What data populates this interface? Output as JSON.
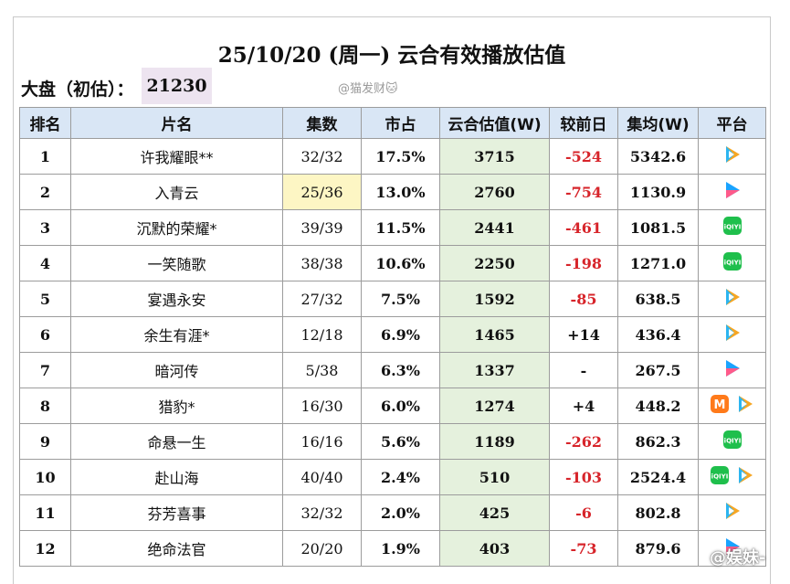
{
  "title": "25/10/20 (周一) 云合有效播放估值",
  "summary": {
    "label": "大盘（初估）：",
    "value": "21230"
  },
  "watermark": "@猫发财🐱",
  "weibo_mark": "@娱妹-",
  "columns": [
    "排名",
    "片名",
    "集数",
    "市占",
    "云合估值(W)",
    "较前日",
    "集均(W)",
    "平台"
  ],
  "colors": {
    "header_bg": "#d9e6f5",
    "estimate_bg": "#e5f1dd",
    "negative": "#d7242a",
    "summary_bg": "#ede4f0",
    "highlight_eps": "#fdf6c4"
  },
  "rows": [
    {
      "rank": "1",
      "name": "许我耀眼**",
      "episodes": "32/32",
      "share": "17.5%",
      "estimate": "3715",
      "change": "-524",
      "avg": "5342.6",
      "platforms": [
        "tencent-video-icon"
      ]
    },
    {
      "rank": "2",
      "name": "入青云",
      "episodes": "25/36",
      "share": "13.0%",
      "estimate": "2760",
      "change": "-754",
      "avg": "1130.9",
      "platforms": [
        "youku-icon"
      ]
    },
    {
      "rank": "3",
      "name": "沉默的荣耀*",
      "episodes": "39/39",
      "share": "11.5%",
      "estimate": "2441",
      "change": "-461",
      "avg": "1081.5",
      "platforms": [
        "iqiyi-icon"
      ]
    },
    {
      "rank": "4",
      "name": "一笑随歌",
      "episodes": "38/38",
      "share": "10.6%",
      "estimate": "2250",
      "change": "-198",
      "avg": "1271.0",
      "platforms": [
        "iqiyi-icon"
      ]
    },
    {
      "rank": "5",
      "name": "宴遇永安",
      "episodes": "27/32",
      "share": "7.5%",
      "estimate": "1592",
      "change": "-85",
      "avg": "638.5",
      "platforms": [
        "tencent-video-icon"
      ]
    },
    {
      "rank": "6",
      "name": "余生有涯*",
      "episodes": "12/18",
      "share": "6.9%",
      "estimate": "1465",
      "change": "+14",
      "avg": "436.4",
      "platforms": [
        "tencent-video-icon"
      ]
    },
    {
      "rank": "7",
      "name": "暗河传",
      "episodes": "5/38",
      "share": "6.3%",
      "estimate": "1337",
      "change": "-",
      "avg": "267.5",
      "platforms": [
        "youku-icon"
      ]
    },
    {
      "rank": "8",
      "name": "猎豹*",
      "episodes": "16/30",
      "share": "6.0%",
      "estimate": "1274",
      "change": "+4",
      "avg": "448.2",
      "platforms": [
        "mango-tv-icon",
        "tencent-video-icon"
      ]
    },
    {
      "rank": "9",
      "name": "命悬一生",
      "episodes": "16/16",
      "share": "5.6%",
      "estimate": "1189",
      "change": "-262",
      "avg": "862.3",
      "platforms": [
        "iqiyi-icon"
      ]
    },
    {
      "rank": "10",
      "name": "赴山海",
      "episodes": "40/40",
      "share": "2.4%",
      "estimate": "510",
      "change": "-103",
      "avg": "2524.4",
      "platforms": [
        "iqiyi-icon",
        "tencent-video-icon"
      ]
    },
    {
      "rank": "11",
      "name": "芬芳喜事",
      "episodes": "32/32",
      "share": "2.0%",
      "estimate": "425",
      "change": "-6",
      "avg": "802.8",
      "platforms": [
        "tencent-video-icon"
      ]
    },
    {
      "rank": "12",
      "name": "绝命法官",
      "episodes": "20/20",
      "share": "1.9%",
      "estimate": "403",
      "change": "-73",
      "avg": "879.6",
      "platforms": [
        "youku-icon"
      ]
    }
  ]
}
